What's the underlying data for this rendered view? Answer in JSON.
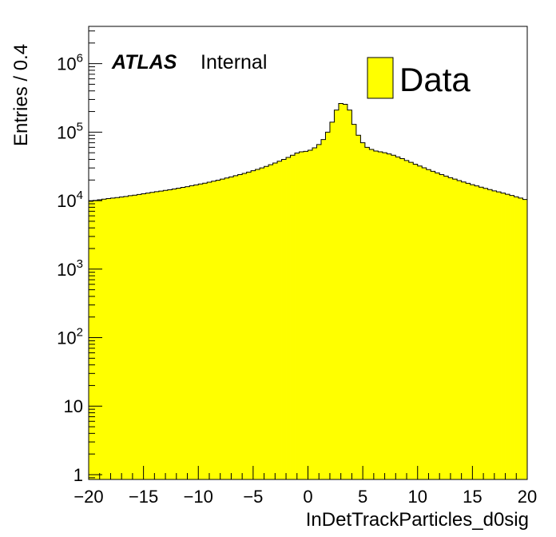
{
  "chart_data": {
    "type": "bar",
    "subtype": "histogram",
    "xlabel": "InDetTrackParticles_d0sig",
    "ylabel": "Entries / 0.4",
    "xlim": [
      -20,
      20
    ],
    "ylim": [
      0.85,
      3500000
    ],
    "yscale": "log",
    "bin_width": 0.4,
    "bin_start": -20,
    "fill_color": "#ffff00",
    "line_color": "#000000",
    "grid": false,
    "legend": {
      "position": "top-right",
      "entries": [
        {
          "label": "Data",
          "color": "#ffff00"
        }
      ]
    },
    "annotations": {
      "experiment": "ATLAS",
      "status": "Internal"
    },
    "x_ticks": [
      {
        "value": -20,
        "label": "−20"
      },
      {
        "value": -15,
        "label": "−15"
      },
      {
        "value": -10,
        "label": "−10"
      },
      {
        "value": -5,
        "label": "−5"
      },
      {
        "value": 0,
        "label": "0"
      },
      {
        "value": 5,
        "label": "5"
      },
      {
        "value": 10,
        "label": "10"
      },
      {
        "value": 15,
        "label": "15"
      },
      {
        "value": 20,
        "label": "20"
      }
    ],
    "y_ticks": [
      {
        "value": 1,
        "base": "1",
        "exp": ""
      },
      {
        "value": 10,
        "base": "10",
        "exp": ""
      },
      {
        "value": 100,
        "base": "10",
        "exp": "2"
      },
      {
        "value": 1000,
        "base": "10",
        "exp": "3"
      },
      {
        "value": 10000,
        "base": "10",
        "exp": "4"
      },
      {
        "value": 100000,
        "base": "10",
        "exp": "5"
      },
      {
        "value": 1000000,
        "base": "10",
        "exp": "6"
      }
    ],
    "values": [
      9800,
      10100,
      10300,
      10500,
      10700,
      10900,
      11100,
      11300,
      11500,
      11800,
      12000,
      12300,
      12600,
      12900,
      13200,
      13500,
      13800,
      14100,
      14400,
      14800,
      15200,
      15600,
      16000,
      16500,
      17000,
      17500,
      18000,
      18600,
      19200,
      19900,
      20600,
      21400,
      22200,
      23100,
      24000,
      25000,
      26100,
      27300,
      28600,
      30000,
      31600,
      33400,
      35400,
      37600,
      40000,
      42800,
      46000,
      49500,
      51500,
      52500,
      54500,
      59000,
      66000,
      78000,
      100000,
      140000,
      210000,
      262000,
      255000,
      210000,
      130000,
      90000,
      70000,
      60000,
      56000,
      53000,
      51500,
      50000,
      48000,
      46000,
      43500,
      41000,
      38500,
      36200,
      34000,
      32000,
      30100,
      28400,
      26800,
      25400,
      24000,
      22800,
      21600,
      20600,
      19600,
      18700,
      17900,
      17100,
      16400,
      15700,
      15100,
      14500,
      13900,
      13400,
      12900,
      12400,
      11900,
      11400,
      10900,
      10400
    ]
  }
}
